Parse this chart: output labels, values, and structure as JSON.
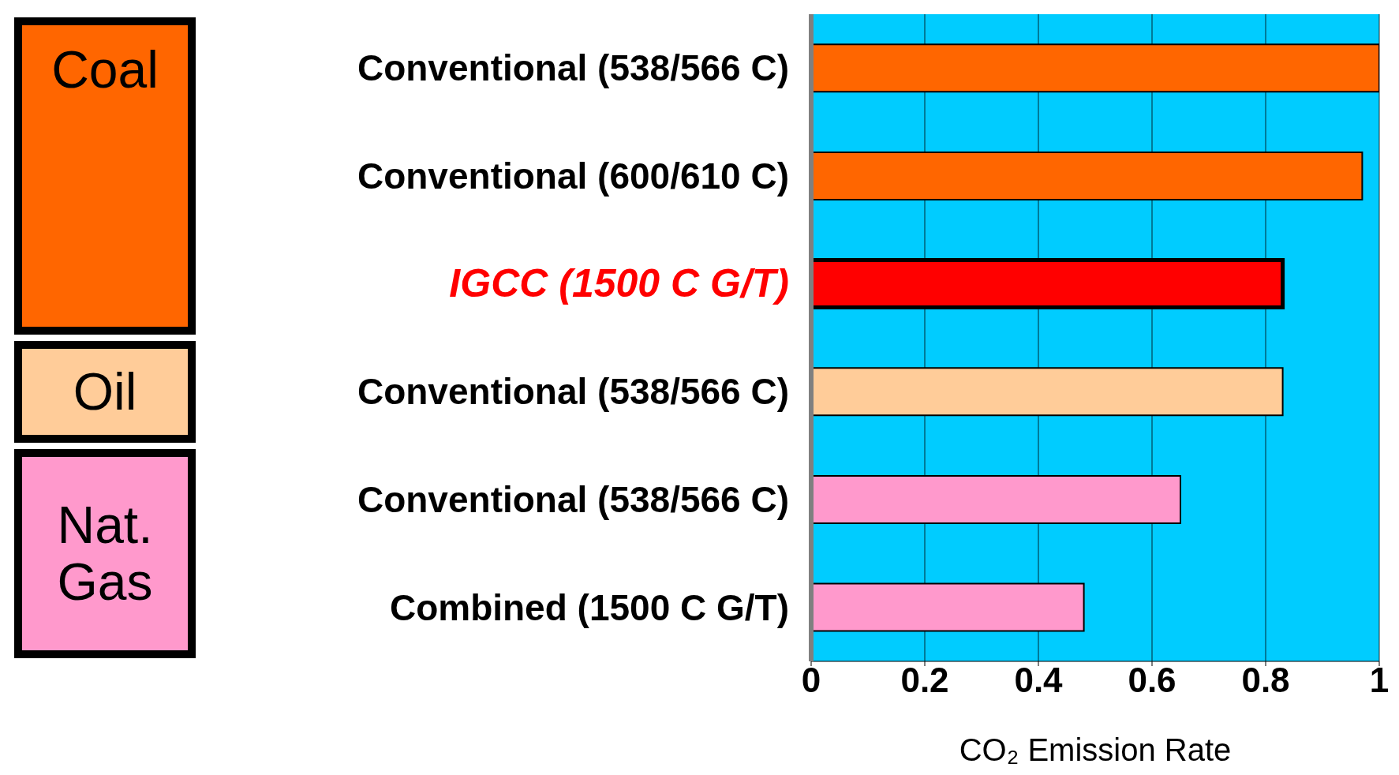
{
  "chart_data": {
    "type": "bar",
    "orientation": "horizontal",
    "xlabel": "CO₂ Emission Rate",
    "categories": [
      "Conventional (538/566 C)",
      "Conventional (600/610 C)",
      "IGCC (1500 C G/T)",
      "Conventional (538/566 C)",
      "Conventional (538/566 C)",
      "Combined (1500 C G/T)"
    ],
    "values": [
      1.0,
      0.97,
      0.83,
      0.83,
      0.65,
      0.48
    ],
    "colors": [
      "#ff6600",
      "#ff6600",
      "#ff0000",
      "#ffcc99",
      "#ff99cc",
      "#ff99cc"
    ],
    "xlim": [
      0,
      1
    ],
    "xticks": [
      0,
      0.2,
      0.4,
      0.6,
      0.8,
      1
    ],
    "grid": "x",
    "legend": false,
    "annotations": [
      "Coal",
      "Oil",
      "Nat. Gas"
    ]
  }
}
